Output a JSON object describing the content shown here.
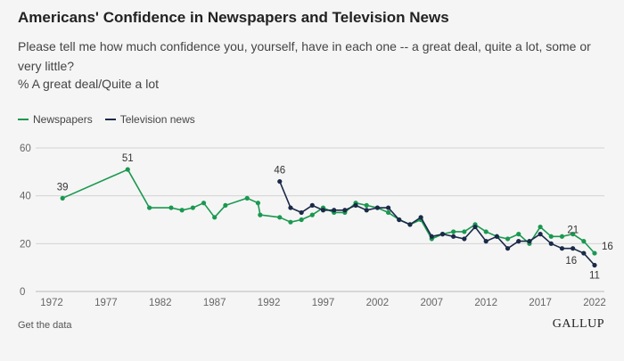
{
  "title": "Americans' Confidence in Newspapers and Television News",
  "subtitle": "Please tell me how much confidence you, yourself, have in each one -- a great deal, quite a lot, some or very little?",
  "measure": "% A great deal/Quite a lot",
  "footer": {
    "get_data_label": "Get the data",
    "logo": "GALLUP"
  },
  "colors": {
    "newspapers": "#1a9850",
    "television": "#1b2a48",
    "grid": "#d4d4d4"
  },
  "chart_data": {
    "type": "line",
    "title": "Americans' Confidence in Newspapers and Television News",
    "xlabel": "",
    "ylabel": "",
    "xlim": [
      1972,
      2022
    ],
    "ylim": [
      0,
      60
    ],
    "x_ticks": [
      1972,
      1977,
      1982,
      1987,
      1992,
      1997,
      2002,
      2007,
      2012,
      2017,
      2022
    ],
    "y_ticks": [
      0,
      20,
      40,
      60
    ],
    "grid": true,
    "legend": "top-left",
    "series": [
      {
        "name": "Newspapers",
        "color": "#1a9850",
        "points": [
          [
            1973,
            39
          ],
          [
            1979,
            51
          ],
          [
            1981,
            35
          ],
          [
            1983,
            35
          ],
          [
            1984,
            34
          ],
          [
            1985,
            35
          ],
          [
            1986,
            37
          ],
          [
            1987,
            31
          ],
          [
            1988,
            36
          ],
          [
            1990,
            39
          ],
          [
            1991,
            37
          ],
          [
            1991.2,
            32
          ],
          [
            1993,
            31
          ],
          [
            1994,
            29
          ],
          [
            1995,
            30
          ],
          [
            1996,
            32
          ],
          [
            1997,
            35
          ],
          [
            1998,
            33
          ],
          [
            1999,
            33
          ],
          [
            2000,
            37
          ],
          [
            2001,
            36
          ],
          [
            2002,
            35
          ],
          [
            2003,
            33
          ],
          [
            2004,
            30
          ],
          [
            2005,
            28
          ],
          [
            2006,
            30
          ],
          [
            2007,
            22
          ],
          [
            2008,
            24
          ],
          [
            2009,
            25
          ],
          [
            2010,
            25
          ],
          [
            2011,
            28
          ],
          [
            2012,
            25
          ],
          [
            2013,
            23
          ],
          [
            2014,
            22
          ],
          [
            2015,
            24
          ],
          [
            2016,
            20
          ],
          [
            2017,
            27
          ],
          [
            2018,
            23
          ],
          [
            2019,
            23
          ],
          [
            2020,
            24
          ],
          [
            2021,
            21
          ],
          [
            2022,
            16
          ]
        ],
        "labels": [
          {
            "x": 1973,
            "y": 39,
            "text": "39"
          },
          {
            "x": 1979,
            "y": 51,
            "text": "51"
          },
          {
            "x": 2021,
            "y": 21,
            "text": "21"
          },
          {
            "x": 2022,
            "y": 16,
            "text": "16"
          }
        ]
      },
      {
        "name": "Television news",
        "color": "#1b2a48",
        "points": [
          [
            1993,
            46
          ],
          [
            1994,
            35
          ],
          [
            1995,
            33
          ],
          [
            1996,
            36
          ],
          [
            1997,
            34
          ],
          [
            1998,
            34
          ],
          [
            1999,
            34
          ],
          [
            2000,
            36
          ],
          [
            2001,
            34
          ],
          [
            2002,
            35
          ],
          [
            2003,
            35
          ],
          [
            2004,
            30
          ],
          [
            2005,
            28
          ],
          [
            2006,
            31
          ],
          [
            2007,
            23
          ],
          [
            2008,
            24
          ],
          [
            2009,
            23
          ],
          [
            2010,
            22
          ],
          [
            2011,
            27
          ],
          [
            2012,
            21
          ],
          [
            2013,
            23
          ],
          [
            2014,
            18
          ],
          [
            2015,
            21
          ],
          [
            2016,
            21
          ],
          [
            2017,
            24
          ],
          [
            2018,
            20
          ],
          [
            2019,
            18
          ],
          [
            2020,
            18
          ],
          [
            2021,
            16
          ],
          [
            2022,
            11
          ]
        ],
        "labels": [
          {
            "x": 1993,
            "y": 46,
            "text": "46"
          },
          {
            "x": 2021,
            "y": 16,
            "text": "16"
          },
          {
            "x": 2022,
            "y": 11,
            "text": "11"
          }
        ]
      }
    ]
  }
}
